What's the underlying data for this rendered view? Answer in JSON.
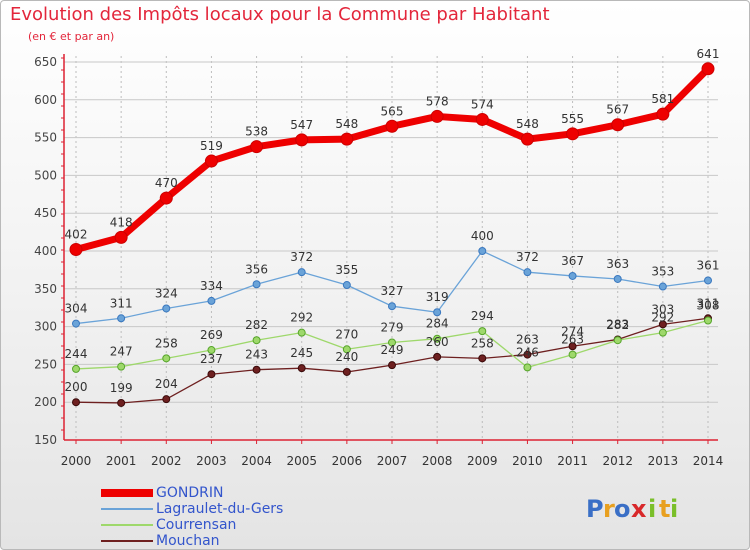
{
  "chart_data": {
    "type": "line",
    "title": "Evolution des Impôts locaux pour la Commune par Habitant",
    "subtitle": "(en € et par an)",
    "xlabel": "",
    "ylabel": "",
    "x": [
      "2000",
      "2001",
      "2002",
      "2003",
      "2004",
      "2005",
      "2006",
      "2007",
      "2008",
      "2009",
      "2010",
      "2011",
      "2012",
      "2013",
      "2014"
    ],
    "ylim": [
      150,
      650
    ],
    "yticks": [
      150,
      200,
      250,
      300,
      350,
      400,
      450,
      500,
      550,
      600,
      650
    ],
    "grid": true,
    "legend_position": "bottom-left",
    "series": [
      {
        "name": "GONDRIN",
        "color": "#ee0000",
        "values": [
          402,
          418,
          470,
          519,
          538,
          547,
          548,
          565,
          578,
          574,
          548,
          555,
          567,
          581,
          641
        ]
      },
      {
        "name": "Lagraulet-du-Gers",
        "color": "#6aa3d8",
        "values": [
          304,
          311,
          324,
          334,
          356,
          372,
          355,
          327,
          319,
          400,
          372,
          367,
          363,
          353,
          361
        ]
      },
      {
        "name": "Courrensan",
        "color": "#9ed86b",
        "values": [
          244,
          247,
          258,
          269,
          282,
          292,
          270,
          279,
          284,
          294,
          246,
          263,
          282,
          292,
          308
        ]
      },
      {
        "name": "Mouchan",
        "color": "#6e2020",
        "values": [
          200,
          199,
          204,
          237,
          243,
          245,
          240,
          249,
          260,
          258,
          263,
          274,
          283,
          303,
          311
        ]
      }
    ]
  },
  "logo": {
    "text": "Proxiti",
    "letters": [
      {
        "ch": "P",
        "color": "#3a6fc6"
      },
      {
        "ch": "r",
        "color": "#e8a020"
      },
      {
        "ch": "o",
        "color": "#3a6fc6"
      },
      {
        "ch": "x",
        "color": "#d8282a"
      },
      {
        "ch": "i",
        "color": "#7abf2a"
      },
      {
        "ch": "t",
        "color": "#e8a020"
      },
      {
        "ch": "i",
        "color": "#7abf2a"
      }
    ]
  }
}
